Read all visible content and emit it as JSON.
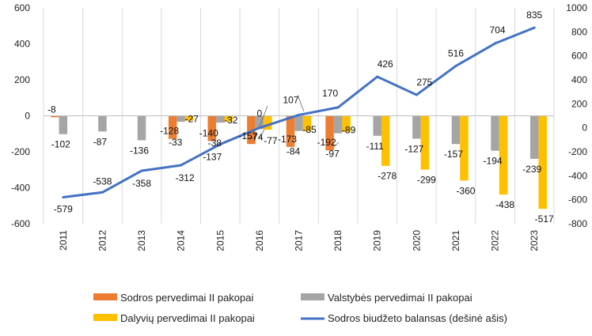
{
  "chart_data": {
    "type": "bar",
    "categories": [
      "2011",
      "2012",
      "2013",
      "2014",
      "2015",
      "2016",
      "2017",
      "2018",
      "2019",
      "2020",
      "2021",
      "2022",
      "2023"
    ],
    "series": [
      {
        "name": "Sodros pervedimai II pakopai",
        "type": "bar",
        "axis": "left",
        "color": "#ED7D31",
        "values": [
          -8,
          0,
          0,
          -128,
          -140,
          -157,
          -173,
          -192,
          0,
          0,
          0,
          0,
          0
        ]
      },
      {
        "name": "Valstybės pervedimai II pakopai",
        "type": "bar",
        "axis": "left",
        "color": "#A5A5A5",
        "values": [
          -102,
          -87,
          -136,
          -33,
          -38,
          -74,
          -84,
          -97,
          -111,
          -127,
          -157,
          -194,
          -239
        ]
      },
      {
        "name": "Dalyvių pervedimai II  pakopai",
        "type": "bar",
        "axis": "left",
        "color": "#FFC000",
        "values": [
          0,
          0,
          0,
          -27,
          -32,
          -77,
          -85,
          -89,
          -278,
          -299,
          -360,
          -438,
          -517
        ]
      },
      {
        "name": "Sodros biudžeto balansas (dešinė ašis)",
        "type": "line",
        "axis": "right",
        "color": "#4472C4",
        "values": [
          -579,
          -538,
          -358,
          -312,
          -137,
          0,
          107,
          170,
          426,
          275,
          516,
          704,
          835
        ]
      }
    ],
    "bar_labels": [
      [
        "-8",
        null,
        null,
        "-128",
        "-140",
        "-157",
        "-173",
        "-192",
        null,
        null,
        null,
        null,
        null
      ],
      [
        "-102",
        "-87",
        "-136",
        "-33",
        "-38",
        "-74",
        "-84",
        "-97",
        "-111",
        "-127",
        "-157",
        "-194",
        "-239"
      ],
      [
        null,
        null,
        null,
        "-27",
        "-32",
        "-77",
        "-85",
        "-89",
        "-278",
        "-299",
        "-360",
        "-438",
        "-517"
      ]
    ],
    "line_labels": [
      "-579",
      "-538",
      "-358",
      "-312",
      "-137",
      "0",
      "107",
      "170",
      "426",
      "275",
      "516",
      "704",
      "835"
    ],
    "y_left": {
      "min": -600,
      "max": 600,
      "ticks": [
        600,
        400,
        200,
        0,
        -200,
        -400,
        -600
      ]
    },
    "y_right": {
      "min": -800,
      "max": 1000,
      "ticks": [
        1000,
        800,
        600,
        400,
        200,
        0,
        -200,
        -400,
        -600,
        -800
      ]
    },
    "grid": "vertical",
    "legend_position": "bottom"
  }
}
